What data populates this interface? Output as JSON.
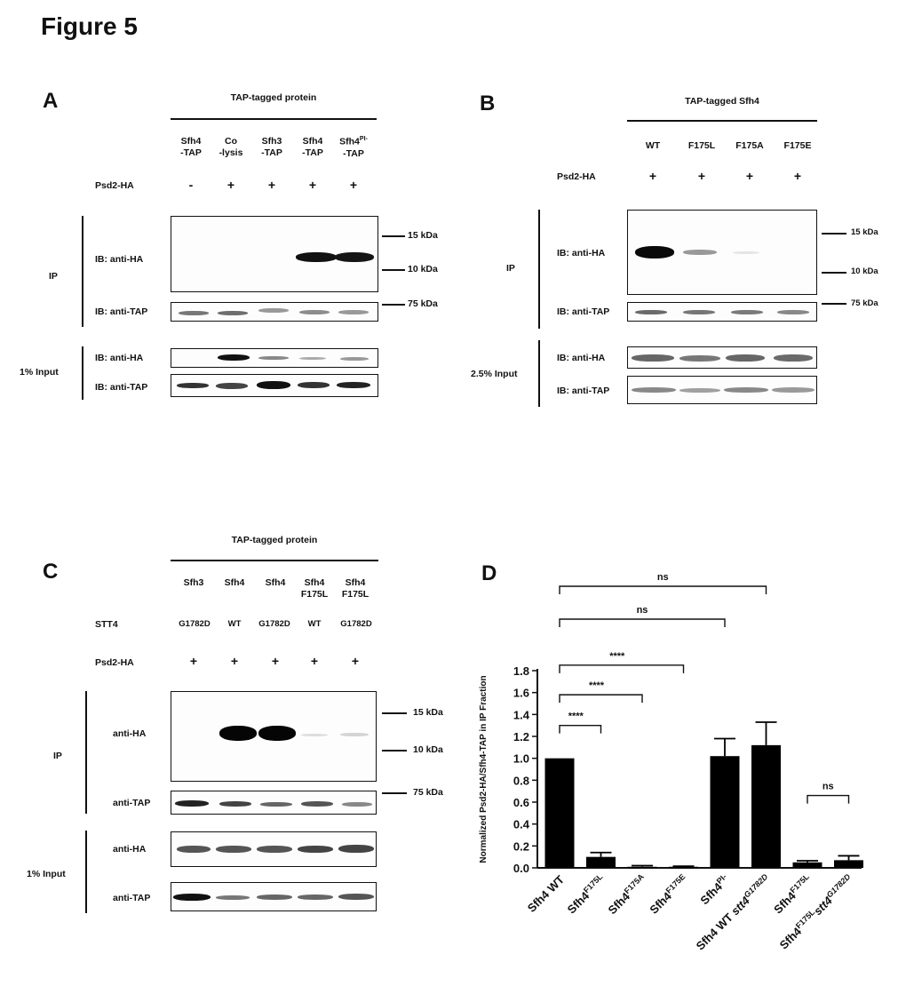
{
  "figure_title": "Figure 5",
  "panel_a": {
    "letter": "A",
    "header": "TAP-tagged protein",
    "columns": [
      {
        "l1": "Sfh4",
        "l2": "-TAP",
        "psd2": "-"
      },
      {
        "l1": "Co",
        "l2": "-lysis",
        "psd2": "+"
      },
      {
        "l1": "Sfh3",
        "l2": "-TAP",
        "psd2": "+"
      },
      {
        "l1": "Sfh4",
        "l2": "-TAP",
        "psd2": "+"
      },
      {
        "l1": "Sfh4",
        "sup": "PI-",
        "l2": "-TAP",
        "psd2": "+"
      }
    ],
    "psd2_label": "Psd2-HA",
    "ip_label": "IP",
    "input_label": "1% Input",
    "ib_ha": "IB: anti-HA",
    "ib_tap": "IB: anti-TAP",
    "mw": [
      "15 kDa",
      "10 kDa",
      "75 kDa"
    ]
  },
  "panel_b": {
    "letter": "B",
    "header": "TAP-tagged Sfh4",
    "columns": [
      "WT",
      "F175L",
      "F175A",
      "F175E"
    ],
    "psd2_label": "Psd2-HA",
    "psd2_marks": [
      "+",
      "+",
      "+",
      "+"
    ],
    "ip_label": "IP",
    "input_label": "2.5% Input",
    "ib_ha": "IB: anti-HA",
    "ib_tap": "IB: anti-TAP",
    "mw": [
      "15 kDa",
      "10 kDa",
      "75 kDa"
    ]
  },
  "panel_c": {
    "letter": "C",
    "header": "TAP-tagged protein",
    "columns": [
      {
        "l1": "Sfh3",
        "l2": ""
      },
      {
        "l1": "Sfh4",
        "l2": ""
      },
      {
        "l1": "Sfh4",
        "l2": ""
      },
      {
        "l1": "Sfh4",
        "l2": "F175L"
      },
      {
        "l1": "Sfh4",
        "l2": "F175L"
      }
    ],
    "stt4_label": "STT4",
    "stt4": [
      "G1782D",
      "WT",
      "G1782D",
      "WT",
      "G1782D"
    ],
    "psd2_label": "Psd2-HA",
    "psd2_marks": [
      "+",
      "+",
      "+",
      "+",
      "+"
    ],
    "ip_label": "IP",
    "input_label": "1% Input",
    "ha": "anti-HA",
    "tap": "anti-TAP",
    "mw": [
      "15 kDa",
      "10 kDa",
      "75 kDa"
    ]
  },
  "panel_d": {
    "letter": "D",
    "chart_data": {
      "type": "bar",
      "ylabel": "Normalized Psd2-HA/Sfh4-TAP in IP Fraction",
      "ylim": [
        0,
        1.8
      ],
      "yticks": [
        "0.0",
        "0.2",
        "0.4",
        "0.6",
        "0.8",
        "1.0",
        "1.2",
        "1.4",
        "1.6",
        "1.8"
      ],
      "categories": [
        {
          "base": "Sfh4 WT",
          "sup": ""
        },
        {
          "base": "Sfh4",
          "sup": "F175L"
        },
        {
          "base": "Sfh4",
          "sup": "F175A"
        },
        {
          "base": "Sfh4",
          "sup": "F175E"
        },
        {
          "base": "Sfh4",
          "sup": "PI-"
        },
        {
          "base": "Sfh4 WT ",
          "ital": "stt4",
          "sup": "G1782D"
        },
        {
          "base": "Sfh4",
          "sup": "F175L"
        },
        {
          "base": "Sfh4",
          "sup": "F175L",
          "ital": "stt4",
          "sup2": "G1782D"
        }
      ],
      "values": [
        1.0,
        0.1,
        0.01,
        0.01,
        1.02,
        1.12,
        0.05,
        0.07
      ],
      "errors": [
        0.0,
        0.04,
        0.01,
        0.005,
        0.16,
        0.21,
        0.015,
        0.04
      ],
      "significance": [
        {
          "from": 0,
          "to": 1,
          "label": "****"
        },
        {
          "from": 0,
          "to": 2,
          "label": "****"
        },
        {
          "from": 0,
          "to": 3,
          "label": "****"
        },
        {
          "from": 0,
          "to": 4,
          "label": "ns"
        },
        {
          "from": 0,
          "to": 5,
          "label": "ns"
        },
        {
          "from": 6,
          "to": 7,
          "label": "ns"
        }
      ]
    }
  }
}
